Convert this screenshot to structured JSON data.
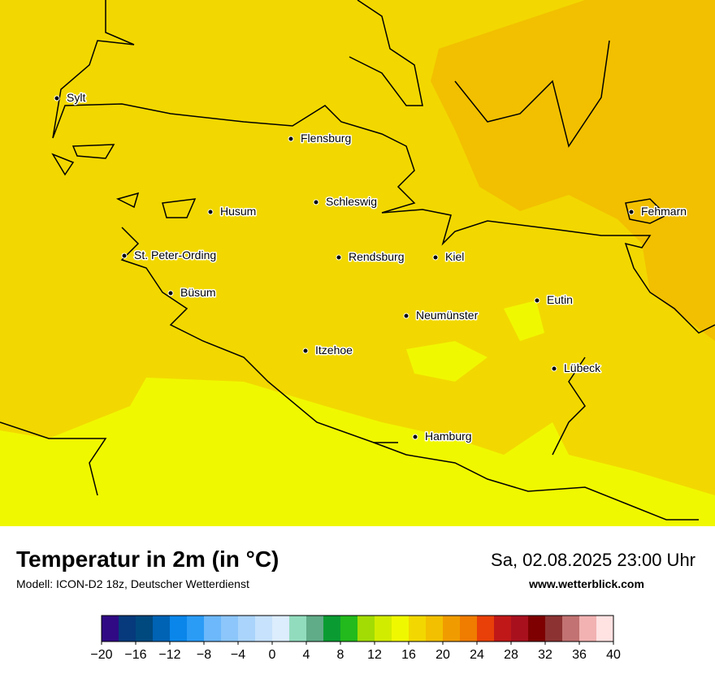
{
  "title": "Temperatur in 2m (in °C)",
  "subtitle": "Modell: ICON-D2 18z, Deutscher Wetterdienst",
  "datetime": "Sa, 02.08.2025 23:00 Uhr",
  "website": "www.wetterblick.com",
  "cities": [
    "Sylt",
    "Flensburg",
    "Schleswig",
    "Husum",
    "St. Peter-Ording",
    "Rendsburg",
    "Kiel",
    "Fehmarn",
    "Büsum",
    "Eutin",
    "Neumünster",
    "Itzehoe",
    "Lübeck",
    "Hamburg"
  ],
  "colorbar": {
    "lim": [
      -20,
      40
    ],
    "ticks": [
      {
        "value": -20,
        "label": "−20"
      },
      {
        "value": -16,
        "label": "−16"
      },
      {
        "value": -12,
        "label": "−12"
      },
      {
        "value": -8,
        "label": "−8"
      },
      {
        "value": -4,
        "label": "−4"
      },
      0,
      4,
      8,
      12,
      16,
      20,
      24,
      28,
      32,
      36,
      40
    ],
    "colors": [
      "#2f0a84",
      "#063a7c",
      "#00497f",
      "#0063b4",
      "#0a86ea",
      "#2a9cf6",
      "#6cb8fa",
      "#8cc6fa",
      "#aad4fb",
      "#c6e2fc",
      "#dcedfd",
      "#92dcbe",
      "#60ab88",
      "#0a9c32",
      "#22ba1c",
      "#a2dc04",
      "#d2ec00",
      "#f0f800",
      "#f2d800",
      "#f2c000",
      "#f09c00",
      "#f07c00",
      "#e84008",
      "#c01818",
      "#a8101e",
      "#7e0000",
      "#8c3232",
      "#c27272",
      "#f2b2b2",
      "#ffe2e2"
    ]
  }
}
